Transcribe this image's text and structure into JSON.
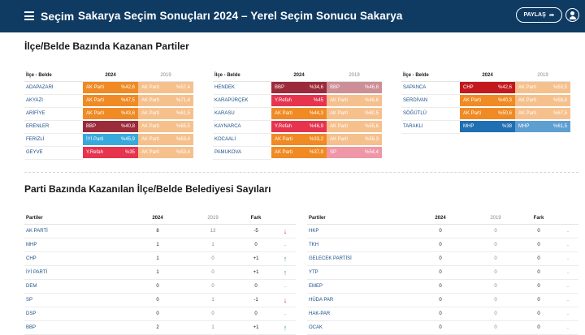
{
  "header": {
    "brand": "Seçim",
    "title": "Sakarya Seçim Sonuçları 2024 – Yerel Seçim Sonucu Sakarya",
    "share_label": "PAYLAŞ",
    "colors": {
      "bar": "#0f3b63"
    }
  },
  "section1": {
    "title": "İlçe/Belde Bazında Kazanan Partiler"
  },
  "section2": {
    "title": "Parti Bazında Kazanılan İlçe/Belde Belediyesi Sayıları"
  },
  "ilce_headers": {
    "name": "İlçe - Belde",
    "y2024": "2024",
    "y2019": "2019"
  },
  "party_colors": {
    "AK Parti": "#f08a24",
    "BBP": "#9b2a3a",
    "İYİ Parti": "#39a9dc",
    "Y.Refah": "#e6344f",
    "CHP": "#c2181e",
    "MHP": "#1f6fb2",
    "SP": "#e6344f"
  },
  "party_colors_faded": {
    "AK Parti": "#f6c08d",
    "BBP": "#cc8f96",
    "İYİ Parti": "#8fd0ee",
    "Y.Refah": "#f08d9c",
    "CHP": "#e08a8d",
    "MHP": "#5e9fd2",
    "SP": "#ef97a6"
  },
  "ilce_groups": [
    [
      {
        "name": "ADAPAZARI",
        "p2024": "AK Parti",
        "v2024": "%42,6",
        "p2019": "AK Parti",
        "v2019": "%57,4"
      },
      {
        "name": "AKYAZI",
        "p2024": "AK Parti",
        "v2024": "%47,5",
        "p2019": "AK Parti",
        "v2019": "%71,4"
      },
      {
        "name": "ARİFİYE",
        "p2024": "AK Parti",
        "v2024": "%43,6",
        "p2019": "AK Parti",
        "v2019": "%61,5"
      },
      {
        "name": "ERENLER",
        "p2024": "BBP",
        "v2024": "%40,8",
        "p2019": "AK Parti",
        "v2019": "%65,5"
      },
      {
        "name": "FERİZLİ",
        "p2024": "İYİ Parti",
        "v2024": "%45,9",
        "p2019": "AK Parti",
        "v2019": "%63,4"
      },
      {
        "name": "GEYVE",
        "p2024": "Y.Refah",
        "v2024": "%35",
        "p2019": "AK Parti",
        "v2019": "%53,4"
      }
    ],
    [
      {
        "name": "HENDEK",
        "p2024": "BBP",
        "v2024": "%34,6",
        "p2019": "BBP",
        "v2019": "%46,8"
      },
      {
        "name": "KARAPÜRÇEK",
        "p2024": "Y.Refah",
        "v2024": "%45",
        "p2019": "AK Parti",
        "v2019": "%46,6"
      },
      {
        "name": "KARASU",
        "p2024": "AK Parti",
        "v2024": "%44,3",
        "p2019": "AK Parti",
        "v2019": "%60,5"
      },
      {
        "name": "KAYNARCA",
        "p2024": "Y.Refah",
        "v2024": "%46,9",
        "p2019": "AK Parti",
        "v2019": "%55,6"
      },
      {
        "name": "KOCAALİ",
        "p2024": "AK Parti",
        "v2024": "%33,2",
        "p2019": "AK Parti",
        "v2019": "%56,3"
      },
      {
        "name": "PAMUKOVA",
        "p2024": "AK Parti",
        "v2024": "%37,9",
        "p2019": "SP",
        "v2019": "%54,4"
      }
    ],
    [
      {
        "name": "SAPANCA",
        "p2024": "CHP",
        "v2024": "%42,6",
        "p2019": "AK Parti",
        "v2019": "%53,5"
      },
      {
        "name": "SERDİVAN",
        "p2024": "AK Parti",
        "v2024": "%40,3",
        "p2019": "AK Parti",
        "v2019": "%58,8"
      },
      {
        "name": "SÖĞÜTLÜ",
        "p2024": "AK Parti",
        "v2024": "%50,6",
        "p2019": "AK Parti",
        "v2019": "%67,5"
      },
      {
        "name": "TARAKLI",
        "p2024": "MHP",
        "v2024": "%38",
        "p2019": "MHP",
        "v2019": "%61,5"
      }
    ]
  ],
  "parti_headers": {
    "name": "Partiler",
    "y2024": "2024",
    "y2019": "2019",
    "fark": "Fark"
  },
  "parti_left": [
    {
      "name": "AK PARTİ",
      "v2024": "8",
      "v2019": "13",
      "fark": "-5",
      "dir": "down"
    },
    {
      "name": "MHP",
      "v2024": "1",
      "v2019": "1",
      "fark": "0",
      "dir": "none"
    },
    {
      "name": "CHP",
      "v2024": "1",
      "v2019": "0",
      "fark": "+1",
      "dir": "up"
    },
    {
      "name": "İYİ PARTİ",
      "v2024": "1",
      "v2019": "0",
      "fark": "+1",
      "dir": "up"
    },
    {
      "name": "DEM",
      "v2024": "0",
      "v2019": "0",
      "fark": "0",
      "dir": "none"
    },
    {
      "name": "SP",
      "v2024": "0",
      "v2019": "1",
      "fark": "-1",
      "dir": "down"
    },
    {
      "name": "DSP",
      "v2024": "0",
      "v2019": "0",
      "fark": "0",
      "dir": "none"
    },
    {
      "name": "BBP",
      "v2024": "2",
      "v2019": "1",
      "fark": "+1",
      "dir": "up"
    }
  ],
  "parti_right": [
    {
      "name": "HKP",
      "v2024": "0",
      "v2019": "0",
      "fark": "0",
      "dir": "none"
    },
    {
      "name": "TKH",
      "v2024": "0",
      "v2019": "0",
      "fark": "0",
      "dir": "none"
    },
    {
      "name": "GELECEK PARTİSİ",
      "v2024": "0",
      "v2019": "0",
      "fark": "0",
      "dir": "none"
    },
    {
      "name": "YTP",
      "v2024": "0",
      "v2019": "0",
      "fark": "0",
      "dir": "none"
    },
    {
      "name": "EMEP",
      "v2024": "0",
      "v2019": "0",
      "fark": "0",
      "dir": "none"
    },
    {
      "name": "HÜDA PAR",
      "v2024": "0",
      "v2019": "0",
      "fark": "0",
      "dir": "none"
    },
    {
      "name": "HAK-PAR",
      "v2024": "0",
      "v2019": "0",
      "fark": "0",
      "dir": "none"
    },
    {
      "name": "OCAK",
      "v2024": "0",
      "v2019": "0",
      "fark": "0",
      "dir": "none"
    }
  ]
}
